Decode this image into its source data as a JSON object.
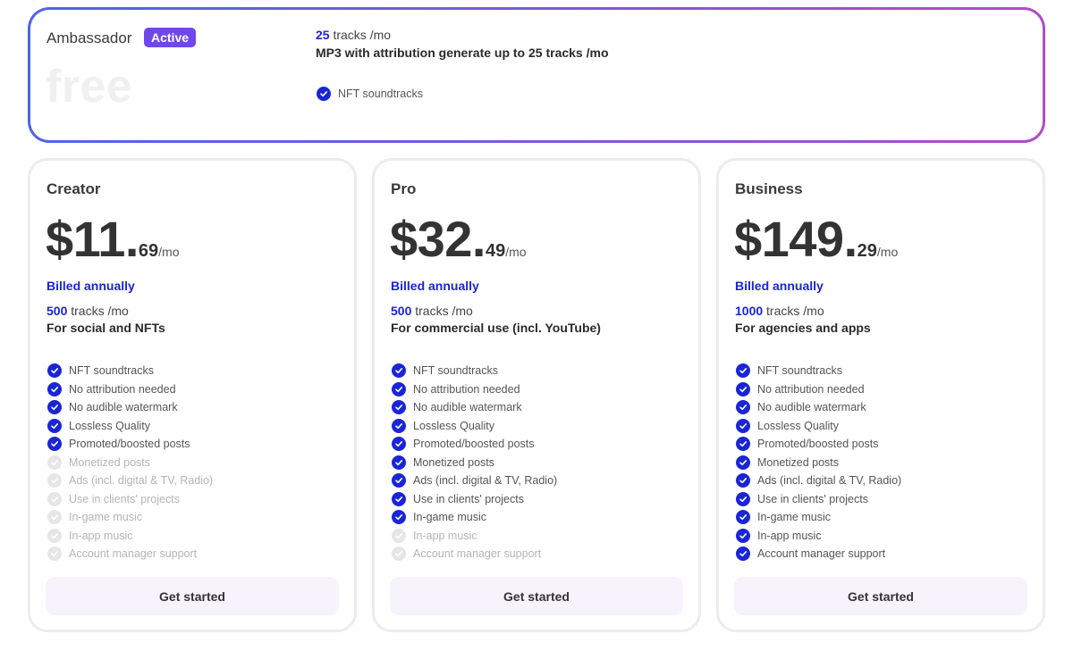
{
  "ambassador": {
    "name": "Ambassador",
    "badge": "Active",
    "price": "free",
    "tracks_count": "25",
    "tracks_unit": "tracks /mo",
    "description": "MP3 with attribution generate up to 25 tracks /mo",
    "feature": "NFT soundtracks"
  },
  "accent_color": "#1a25d6",
  "badge_color": "#7048e8",
  "plans": [
    {
      "name": "Creator",
      "price_major": "$11.",
      "price_minor": "69",
      "price_period": "/mo",
      "billing": "Billed annually",
      "tracks_count": "500",
      "tracks_unit": "tracks /mo",
      "use_case": "For social and NFTs",
      "cta": "Get started",
      "features": [
        {
          "label": "NFT soundtracks",
          "included": true
        },
        {
          "label": "No attribution needed",
          "included": true
        },
        {
          "label": "No audible watermark",
          "included": true
        },
        {
          "label": "Lossless Quality",
          "included": true
        },
        {
          "label": "Promoted/boosted posts",
          "included": true
        },
        {
          "label": "Monetized posts",
          "included": false
        },
        {
          "label": "Ads (incl. digital & TV, Radio)",
          "included": false
        },
        {
          "label": "Use in clients' projects",
          "included": false
        },
        {
          "label": "In-game music",
          "included": false
        },
        {
          "label": "In-app music",
          "included": false
        },
        {
          "label": "Account manager support",
          "included": false
        }
      ]
    },
    {
      "name": "Pro",
      "price_major": "$32.",
      "price_minor": "49",
      "price_period": "/mo",
      "billing": "Billed annually",
      "tracks_count": "500",
      "tracks_unit": "tracks /mo",
      "use_case": "For commercial use (incl. YouTube)",
      "cta": "Get started",
      "features": [
        {
          "label": "NFT soundtracks",
          "included": true
        },
        {
          "label": "No attribution needed",
          "included": true
        },
        {
          "label": "No audible watermark",
          "included": true
        },
        {
          "label": "Lossless Quality",
          "included": true
        },
        {
          "label": "Promoted/boosted posts",
          "included": true
        },
        {
          "label": "Monetized posts",
          "included": true
        },
        {
          "label": "Ads (incl. digital & TV, Radio)",
          "included": true
        },
        {
          "label": "Use in clients' projects",
          "included": true
        },
        {
          "label": "In-game music",
          "included": true
        },
        {
          "label": "In-app music",
          "included": false
        },
        {
          "label": "Account manager support",
          "included": false
        }
      ]
    },
    {
      "name": "Business",
      "price_major": "$149.",
      "price_minor": "29",
      "price_period": "/mo",
      "billing": "Billed annually",
      "tracks_count": "1000",
      "tracks_unit": "tracks /mo",
      "use_case": "For agencies and apps",
      "cta": "Get started",
      "features": [
        {
          "label": "NFT soundtracks",
          "included": true
        },
        {
          "label": "No attribution needed",
          "included": true
        },
        {
          "label": "No audible watermark",
          "included": true
        },
        {
          "label": "Lossless Quality",
          "included": true
        },
        {
          "label": "Promoted/boosted posts",
          "included": true
        },
        {
          "label": "Monetized posts",
          "included": true
        },
        {
          "label": "Ads (incl. digital & TV, Radio)",
          "included": true
        },
        {
          "label": "Use in clients' projects",
          "included": true
        },
        {
          "label": "In-game music",
          "included": true
        },
        {
          "label": "In-app music",
          "included": true
        },
        {
          "label": "Account manager support",
          "included": true
        }
      ]
    }
  ]
}
